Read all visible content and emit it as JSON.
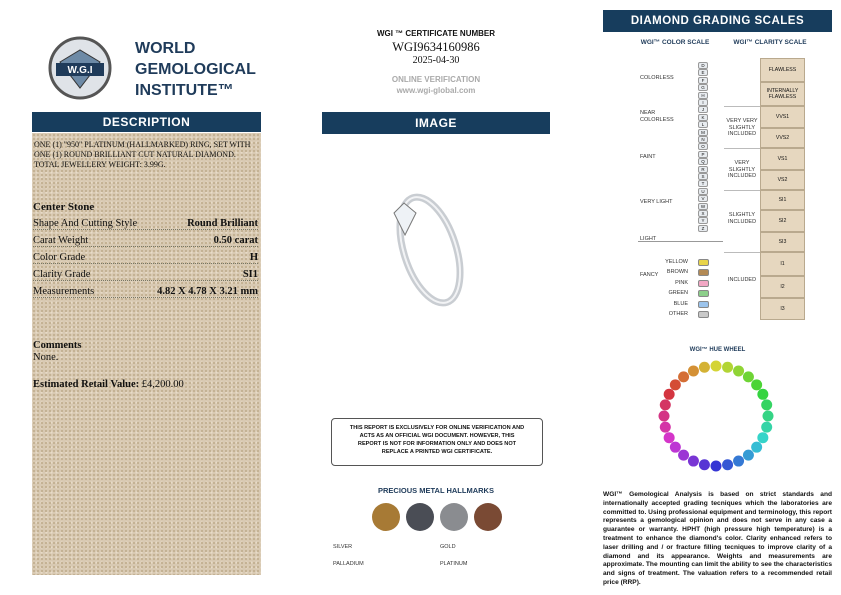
{
  "header": {
    "initials": "W.G.I",
    "name_lines": [
      "WORLD",
      "GEMOLOGICAL",
      "INSTITUTE™"
    ]
  },
  "description": {
    "heading": "DESCRIPTION",
    "text": "ONE (1) \"950\" PLATINUM (HALLMARKED) RING, SET WITH ONE (1) ROUND BRILLIANT CUT NATURAL DIAMOND. TOTAL JEWELLERY WEIGHT: 3.99g."
  },
  "center_stone": {
    "heading": "Center Stone",
    "rows": [
      [
        "Shape And Cutting Style",
        "Round Brilliant"
      ],
      [
        "Carat Weight",
        "0.50 carat"
      ],
      [
        "Color Grade",
        "H"
      ],
      [
        "Clarity Grade",
        "SI1"
      ],
      [
        "Measurements",
        "4.82 X 4.78 X 3.21 mm"
      ]
    ]
  },
  "comments": {
    "heading": "Comments",
    "text": "None."
  },
  "retail": {
    "label": "Estimated Retail Value:",
    "value": "£4,200.00"
  },
  "certificate": {
    "label": "WGI ™ CERTIFICATE NUMBER",
    "number": "WGI9634160986",
    "date": "2025-04-30",
    "verification_label": "ONLINE VERIFICATION",
    "website": "www.wgi-global.com"
  },
  "image": {
    "heading": "IMAGE"
  },
  "disclaimer": "THIS REPORT IS EXCLUSIVELY FOR ONLINE VERIFICATION AND ACTS AS AN OFFICIAL WGI DOCUMENT. HOWEVER, THIS REPORT IS NOT FOR INFORMATION ONLY AND DOES NOT REPLACE A PRINTED WGI CERTIFICATE.",
  "hallmarks": {
    "heading": "PRECIOUS METAL HALLMARKS",
    "labels": [
      "SILVER",
      "PALLADIUM",
      "GOLD",
      "PLATINUM"
    ]
  },
  "grading_scales": {
    "heading": "DIAMOND GRADING SCALES",
    "color_scale": {
      "heading": "WGI™ COLOR SCALE",
      "grades": [
        "D",
        "E",
        "F",
        "G",
        "H",
        "I",
        "J",
        "K",
        "L",
        "M",
        "N",
        "O",
        "P",
        "Q",
        "R",
        "S",
        "T",
        "U",
        "V",
        "W",
        "X",
        "Y",
        "Z"
      ],
      "groups": [
        "COLORLESS",
        "NEAR COLORLESS",
        "FAINT",
        "VERY LIGHT",
        "LIGHT"
      ],
      "fancy": [
        "FANCY",
        "YELLOW",
        "BROWN",
        "PINK",
        "GREEN",
        "BLUE",
        "OTHER"
      ]
    },
    "clarity_scale": {
      "heading": "WGI™ CLARITY SCALE",
      "grades": [
        "FLAWLESS",
        "INTERNALLY FLAWLESS",
        "VVS1",
        "VVS2",
        "VS1",
        "VS2",
        "SI1",
        "SI2",
        "SI3",
        "I1",
        "I2",
        "I3"
      ],
      "groups": [
        "VERY VERY SLIGHTLY INCLUDED",
        "VERY SLIGHTLY INCLUDED",
        "SLIGHTLY INCLUDED",
        "INCLUDED"
      ]
    }
  },
  "hue_wheel": {
    "heading": "WGI™ HUE WHEEL"
  },
  "footnote": "WGI™ Gemological Analysis is based on strict standards and internationally accepted grading tecniques which the laboratories are committed to. Using professional equipment and terminology, this report represents a gemological opinion and does not serve in any case a guarantee or warranty. HPHT (high pressure high temperature) is a treatment to enhance the diamond's color. Clarity enhanced refers to laser drilling and / or fracture filling tecniques to improve clarity of a diamond and its appearance. Weights and measurements are approximate. The mounting can limit the ability to see the characteristics and signs of treatment. The valuation refers to a recommended retail price (RRP)."
}
